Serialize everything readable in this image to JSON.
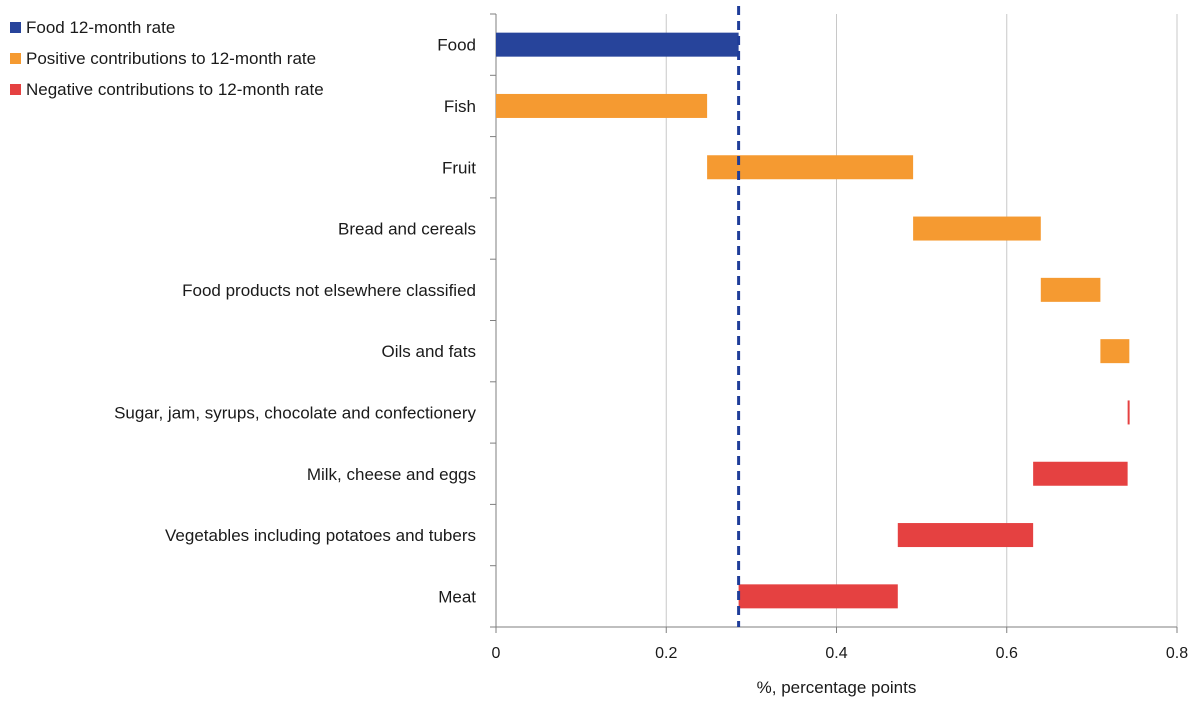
{
  "chart_data": {
    "type": "bar",
    "orientation": "horizontal-waterfall",
    "title": "",
    "xlabel": "%, percentage points",
    "ylabel": "",
    "xlim": [
      0,
      0.8
    ],
    "x_ticks": [
      "0",
      "0.2",
      "0.4",
      "0.6",
      "0.8"
    ],
    "grid": "vertical",
    "legend": {
      "placement": "top-left",
      "entries": [
        {
          "label": "Food 12-month rate",
          "color": "#27449b"
        },
        {
          "label": "Positive contributions to 12-month rate",
          "color": "#f59a31"
        },
        {
          "label": "Negative contributions to 12-month rate",
          "color": "#e54141"
        }
      ]
    },
    "reference_line": {
      "value": 0.285,
      "style": "dashed",
      "color": "#1f3d99"
    },
    "bars": [
      {
        "category": "Food",
        "type": "total",
        "start": 0,
        "end": 0.285,
        "color": "#27449b"
      },
      {
        "category": "Fish",
        "type": "positive",
        "start": 0,
        "end": 0.248,
        "color": "#f59a31"
      },
      {
        "category": "Fruit",
        "type": "positive",
        "start": 0.248,
        "end": 0.49,
        "color": "#f59a31"
      },
      {
        "category": "Bread and cereals",
        "type": "positive",
        "start": 0.49,
        "end": 0.64,
        "color": "#f59a31"
      },
      {
        "category": "Food products not elsewhere classified",
        "type": "positive",
        "start": 0.64,
        "end": 0.71,
        "color": "#f59a31"
      },
      {
        "category": "Oils and fats",
        "type": "positive",
        "start": 0.71,
        "end": 0.744,
        "color": "#f59a31"
      },
      {
        "category": "Sugar, jam, syrups, chocolate and confectionery",
        "type": "negative",
        "start": 0.742,
        "end": 0.744,
        "color": "#e54141"
      },
      {
        "category": "Milk, cheese and eggs",
        "type": "negative",
        "start": 0.631,
        "end": 0.742,
        "color": "#e54141"
      },
      {
        "category": "Vegetables including potatoes and tubers",
        "type": "negative",
        "start": 0.472,
        "end": 0.631,
        "color": "#e54141"
      },
      {
        "category": "Meat",
        "type": "negative",
        "start": 0.285,
        "end": 0.472,
        "color": "#e54141"
      }
    ]
  }
}
